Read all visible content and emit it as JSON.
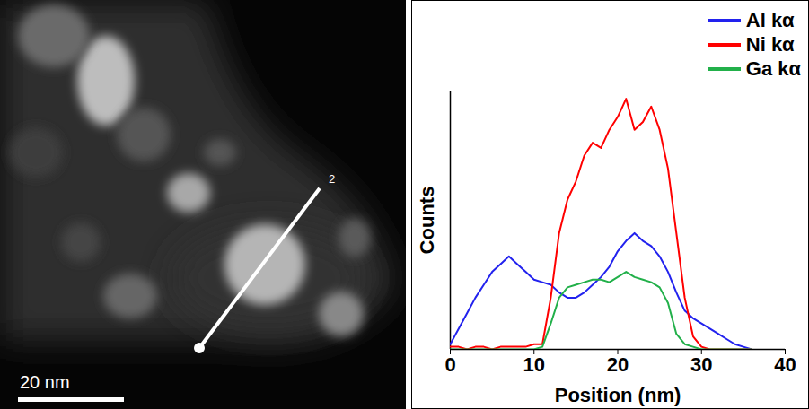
{
  "image": {
    "line_label": "2",
    "scale_bar": "20 nm"
  },
  "chart_data": {
    "type": "line",
    "x_label": "Position (nm)",
    "y_label": "Counts",
    "x": [
      0,
      1,
      2,
      3,
      4,
      5,
      6,
      7,
      8,
      9,
      10,
      11,
      12,
      13,
      14,
      15,
      16,
      17,
      18,
      19,
      20,
      21,
      22,
      23,
      24,
      25,
      26,
      27,
      28,
      29,
      30,
      31,
      32,
      33,
      34,
      35,
      36
    ],
    "series": [
      {
        "name": "Al kα",
        "color": "#2222ee",
        "values": [
          2,
          8,
          14,
          20,
          25,
          30,
          33,
          36,
          33,
          30,
          27,
          26,
          25,
          22,
          20,
          20,
          22,
          25,
          28,
          32,
          38,
          42,
          45,
          42,
          40,
          36,
          30,
          22,
          15,
          12,
          10,
          8,
          6,
          4,
          2,
          1,
          0
        ]
      },
      {
        "name": "Ni kα",
        "color": "#ff0000",
        "values": [
          1,
          1,
          0,
          1,
          1,
          0,
          1,
          1,
          1,
          1,
          2,
          2,
          20,
          45,
          58,
          65,
          75,
          80,
          78,
          85,
          90,
          97,
          85,
          88,
          94,
          85,
          70,
          45,
          20,
          5,
          1,
          0,
          0,
          0,
          0,
          0,
          0
        ]
      },
      {
        "name": "Ga kα",
        "color": "#22b04a",
        "values": [
          0,
          0,
          0,
          0,
          0,
          0,
          0,
          0,
          0,
          0,
          0,
          1,
          10,
          20,
          24,
          25,
          26,
          27,
          27,
          26,
          28,
          30,
          28,
          27,
          26,
          24,
          18,
          6,
          2,
          1,
          0,
          0,
          0,
          0,
          0,
          0,
          0
        ]
      }
    ],
    "xlim": [
      0,
      40
    ],
    "xticks": [
      0,
      10,
      20,
      30,
      40
    ],
    "ylim": [
      0,
      100
    ],
    "tick_labels": "x",
    "legend": "top-right"
  }
}
